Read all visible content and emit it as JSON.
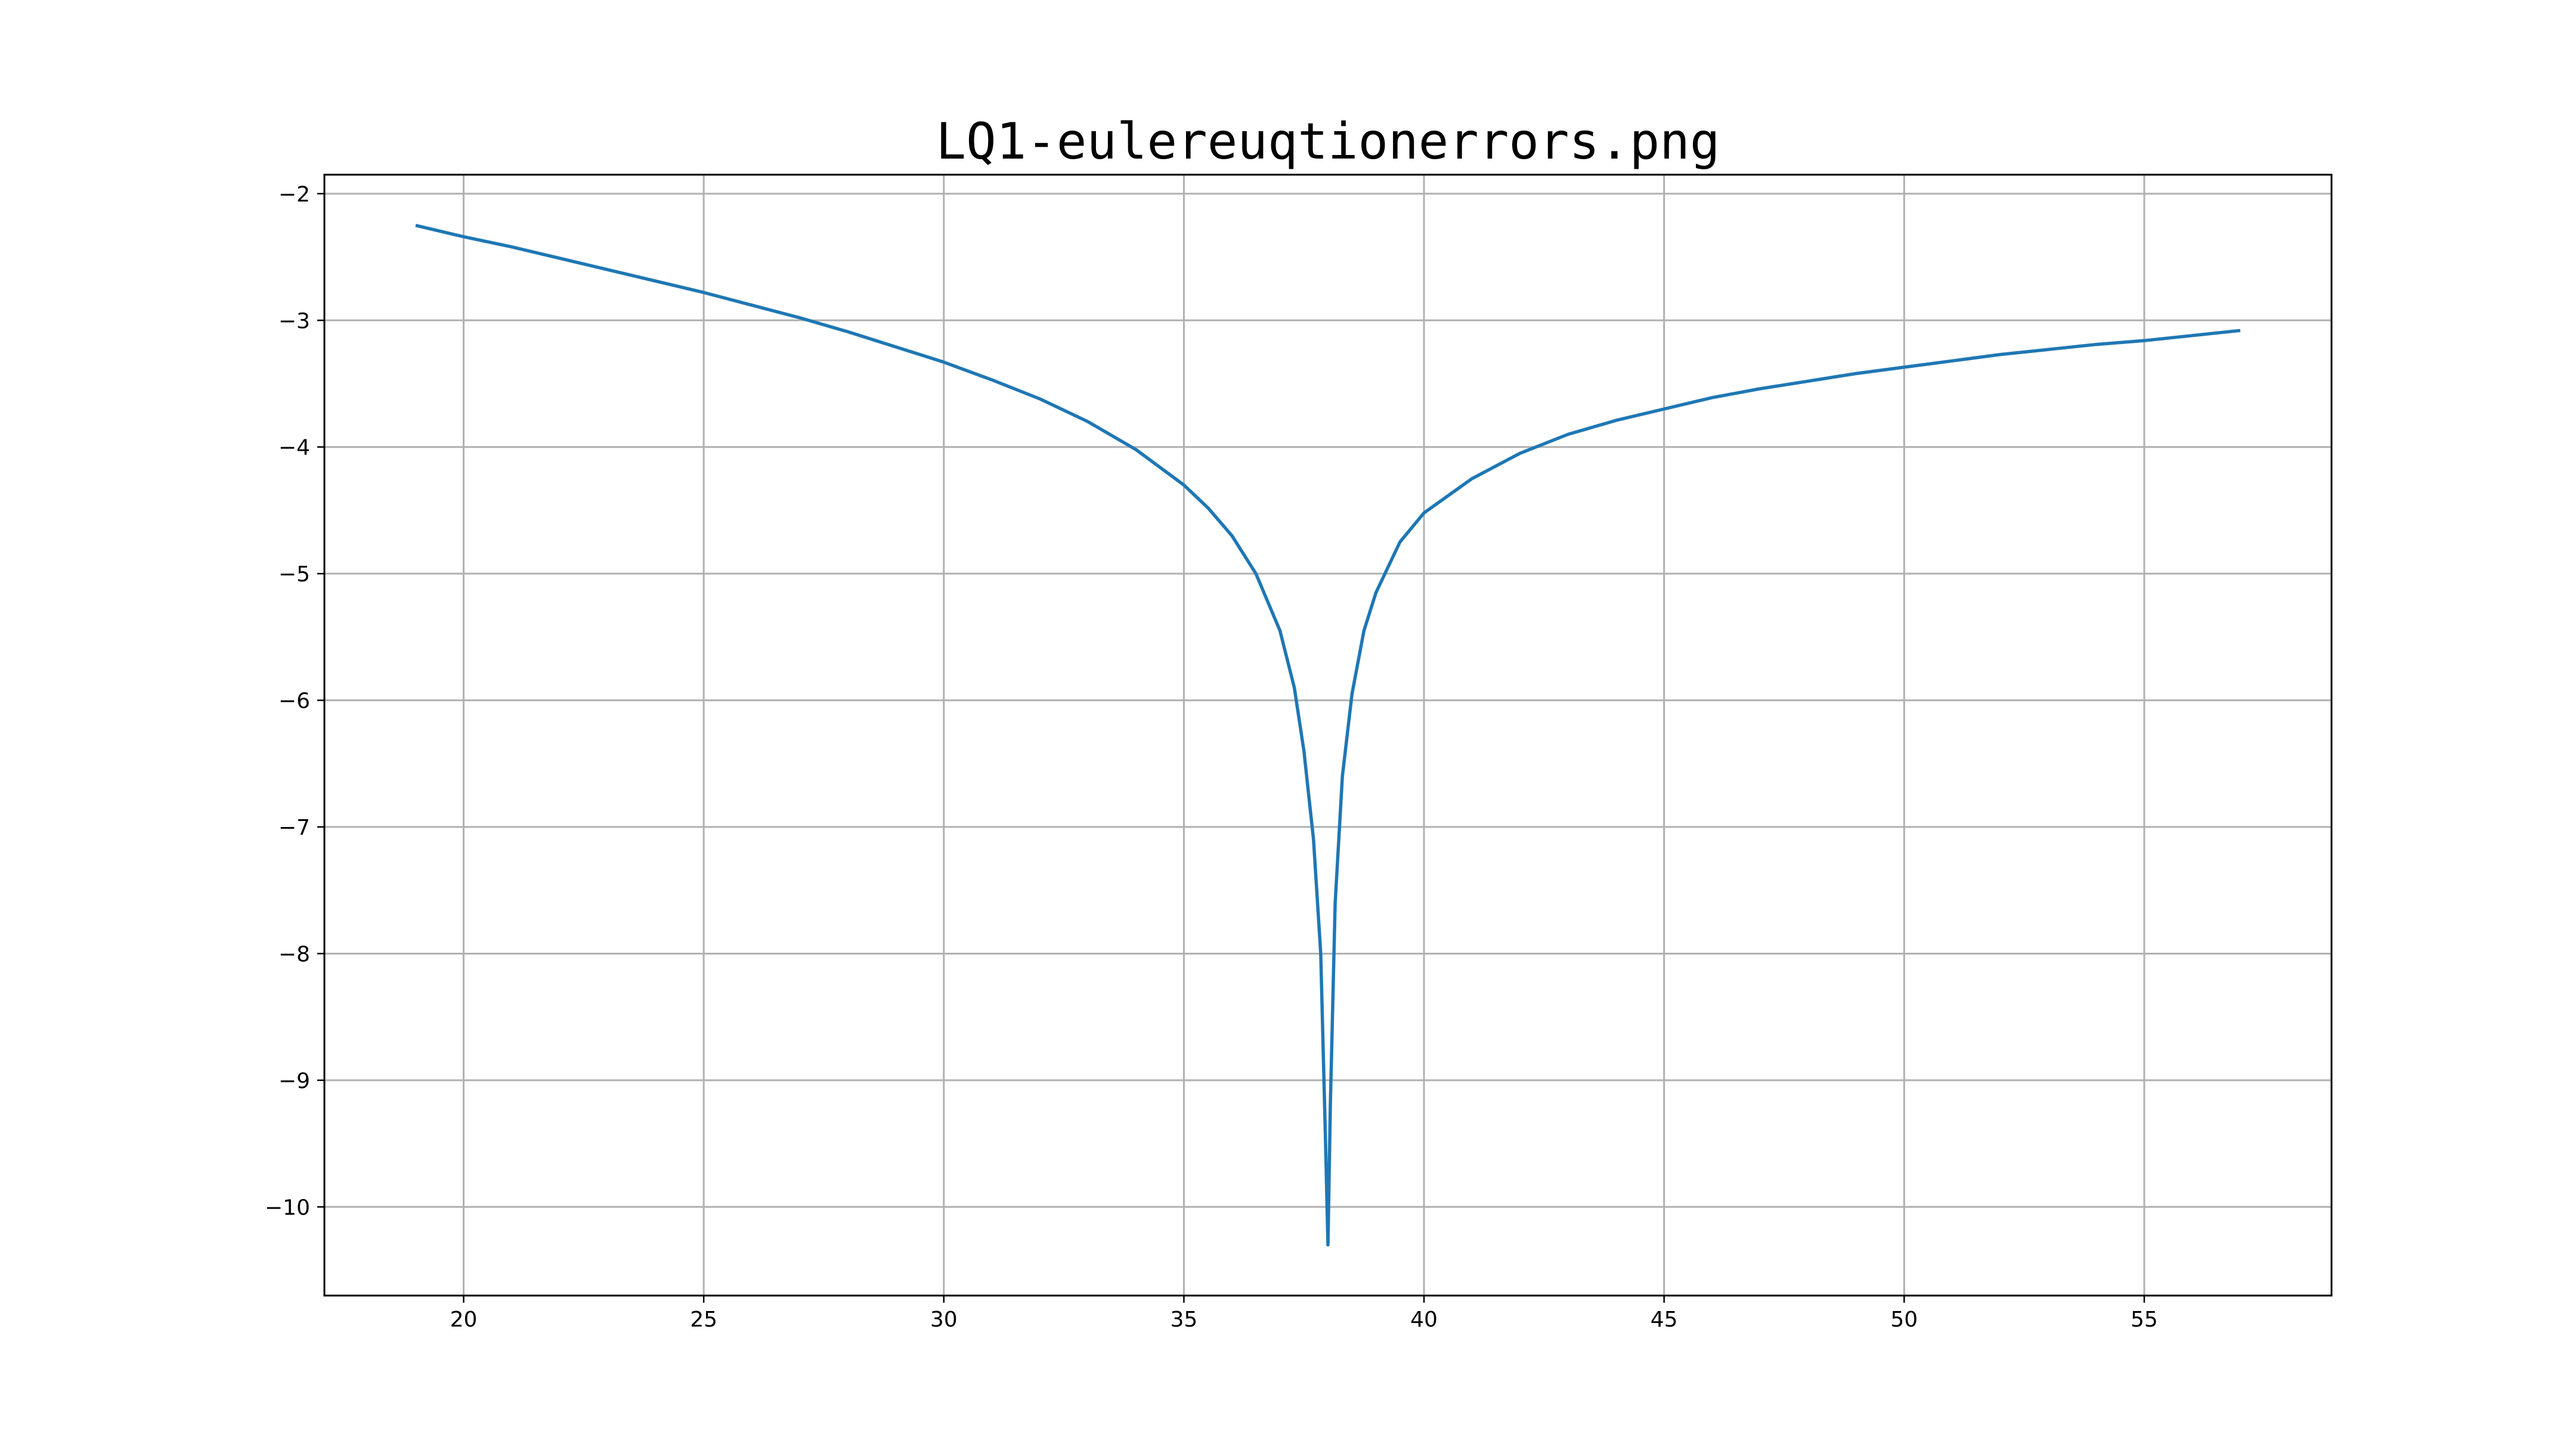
{
  "chart_data": {
    "type": "line",
    "title": "LQ1-eulereuqtionerrors.png",
    "xlabel": "",
    "ylabel": "",
    "xlim": [
      17.1,
      58.9
    ],
    "ylim": [
      -10.7,
      -1.85
    ],
    "x_ticks": [
      20,
      25,
      30,
      35,
      40,
      45,
      50,
      55
    ],
    "y_ticks": [
      -2,
      -3,
      -4,
      -5,
      -6,
      -7,
      -8,
      -9,
      -10
    ],
    "grid": true,
    "legend": "none",
    "series_color": "#1f77b4",
    "series": [
      {
        "points": [
          [
            19,
            -2.25
          ],
          [
            20,
            -2.34
          ],
          [
            21,
            -2.42
          ],
          [
            22,
            -2.51
          ],
          [
            23,
            -2.6
          ],
          [
            24,
            -2.69
          ],
          [
            25,
            -2.78
          ],
          [
            26,
            -2.88
          ],
          [
            27,
            -2.98
          ],
          [
            28,
            -3.09
          ],
          [
            29,
            -3.21
          ],
          [
            30,
            -3.33
          ],
          [
            31,
            -3.47
          ],
          [
            32,
            -3.62
          ],
          [
            33,
            -3.8
          ],
          [
            34,
            -4.02
          ],
          [
            35,
            -4.3
          ],
          [
            35.5,
            -4.48
          ],
          [
            36,
            -4.7
          ],
          [
            36.5,
            -5.0
          ],
          [
            37,
            -5.45
          ],
          [
            37.3,
            -5.9
          ],
          [
            37.5,
            -6.4
          ],
          [
            37.7,
            -7.1
          ],
          [
            37.85,
            -8.0
          ],
          [
            37.95,
            -9.5
          ],
          [
            38.0,
            -10.3
          ],
          [
            38.05,
            -9.2
          ],
          [
            38.15,
            -7.6
          ],
          [
            38.3,
            -6.6
          ],
          [
            38.5,
            -5.95
          ],
          [
            38.75,
            -5.45
          ],
          [
            39,
            -5.15
          ],
          [
            39.5,
            -4.75
          ],
          [
            40,
            -4.52
          ],
          [
            41,
            -4.25
          ],
          [
            42,
            -4.05
          ],
          [
            43,
            -3.9
          ],
          [
            44,
            -3.79
          ],
          [
            45,
            -3.7
          ],
          [
            46,
            -3.61
          ],
          [
            47,
            -3.54
          ],
          [
            48,
            -3.48
          ],
          [
            49,
            -3.42
          ],
          [
            50,
            -3.37
          ],
          [
            51,
            -3.32
          ],
          [
            52,
            -3.27
          ],
          [
            53,
            -3.23
          ],
          [
            54,
            -3.19
          ],
          [
            55,
            -3.16
          ],
          [
            56,
            -3.12
          ],
          [
            57,
            -3.08
          ]
        ]
      }
    ]
  }
}
